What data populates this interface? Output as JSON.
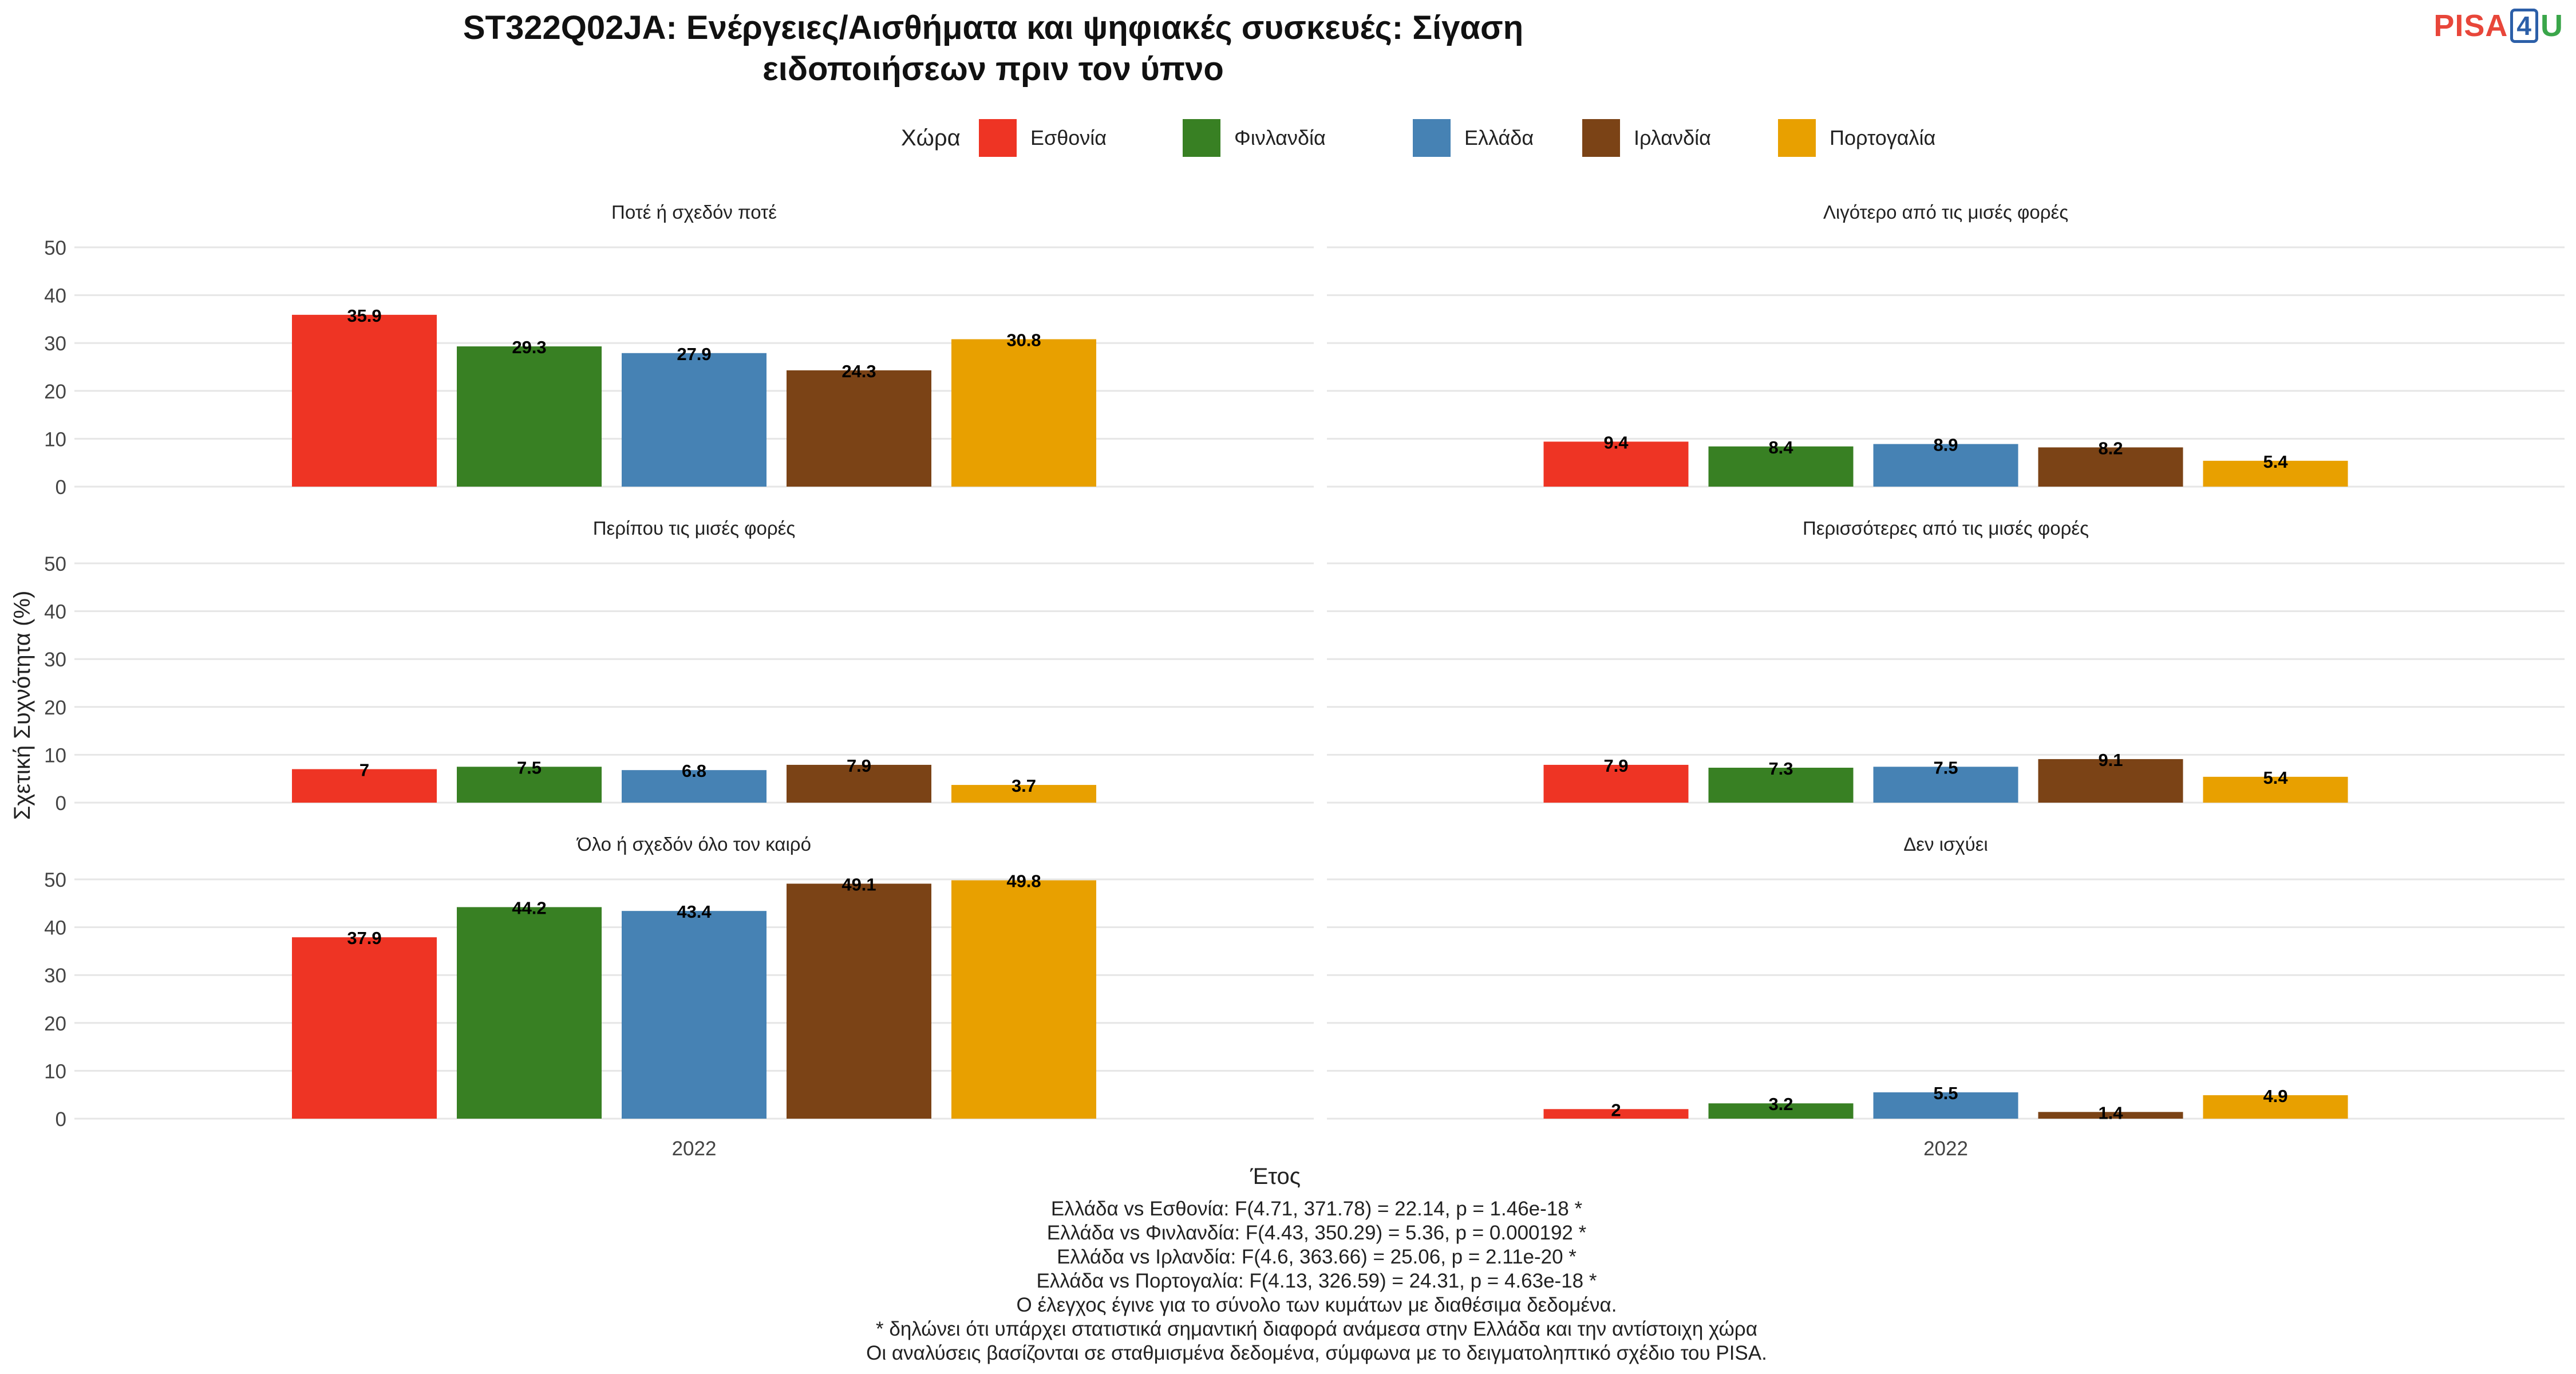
{
  "title_line1": "ST322Q02JA: Ενέργειες/Αισθήματα και ψηφιακές συσκευές: Σίγαση",
  "title_line2": "ειδοποιήσεων πριν τον ύπνο",
  "logo": {
    "part1": "PISA",
    "part2": "4",
    "part3": "U"
  },
  "legend_title": "Χώρα",
  "countries": [
    {
      "name": "Εσθονία",
      "color": "#EE3424"
    },
    {
      "name": "Φινλανδία",
      "color": "#388023"
    },
    {
      "name": "Ελλάδα",
      "color": "#4682B4"
    },
    {
      "name": "Ιρλανδία",
      "color": "#7B4316"
    },
    {
      "name": "Πορτογαλία",
      "color": "#E8A000"
    }
  ],
  "y_label": "Σχετική Συχνότητα (%)",
  "x_label": "Έτος",
  "footnotes": [
    "Ελλάδα vs Εσθονία: F(4.71, 371.78) = 22.14, p = 1.46e-18 *",
    "Ελλάδα vs Φινλανδία: F(4.43, 350.29) = 5.36, p = 0.000192 *",
    "Ελλάδα vs Ιρλανδία: F(4.6, 363.66) = 25.06, p = 2.11e-20 *",
    "Ελλάδα vs Πορτογαλία: F(4.13, 326.59) = 24.31, p = 4.63e-18 *",
    "Ο έλεγχος έγινε για το σύνολο των κυμάτων με διαθέσιμα δεδομένα.",
    "* δηλώνει ότι υπάρχει στατιστικά σημαντική διαφορά ανάμεσα στην Ελλάδα και την αντίστοιχη χώρα",
    "Οι αναλύσεις βασίζονται σε σταθμισμένα δεδομένα, σύμφωνα με το δειγματοληπτικό σχέδιο του PISA."
  ],
  "chart_data": {
    "type": "bar",
    "facets": [
      {
        "title": "Ποτέ ή σχεδόν ποτέ",
        "values": [
          35.9,
          29.3,
          27.9,
          24.3,
          30.8
        ],
        "labels": [
          "35.9",
          "29.3",
          "27.9",
          "24.3",
          "30.8"
        ]
      },
      {
        "title": "Λιγότερο από τις μισές φορές",
        "values": [
          9.4,
          8.4,
          8.9,
          8.2,
          5.4
        ],
        "labels": [
          "9.4",
          "8.4",
          "8.9",
          "8.2",
          "5.4"
        ]
      },
      {
        "title": "Περίπου τις μισές φορές",
        "values": [
          7,
          7.5,
          6.8,
          7.9,
          3.7
        ],
        "labels": [
          "7",
          "7.5",
          "6.8",
          "7.9",
          "3.7"
        ]
      },
      {
        "title": "Περισσότερες από τις μισές φορές",
        "values": [
          7.9,
          7.3,
          7.5,
          9.1,
          5.4
        ],
        "labels": [
          "7.9",
          "7.3",
          "7.5",
          "9.1",
          "5.4"
        ]
      },
      {
        "title": "Όλο ή σχεδόν όλο τον καιρό",
        "values": [
          37.9,
          44.2,
          43.4,
          49.1,
          49.8
        ],
        "labels": [
          "37.9",
          "44.2",
          "43.4",
          "49.1",
          "49.8"
        ]
      },
      {
        "title": "Δεν ισχύει",
        "values": [
          2,
          3.2,
          5.5,
          1.4,
          4.9
        ],
        "labels": [
          "2",
          "3.2",
          "5.5",
          "1.4",
          "4.9"
        ]
      }
    ],
    "series": [
      "Εσθονία",
      "Φινλανδία",
      "Ελλάδα",
      "Ιρλανδία",
      "Πορτογαλία"
    ],
    "x_category": "2022",
    "y_ticks": [
      "0",
      "10",
      "20",
      "30",
      "40",
      "50"
    ],
    "ylim": [
      0,
      50
    ],
    "grid": true,
    "legend_position": "top"
  }
}
